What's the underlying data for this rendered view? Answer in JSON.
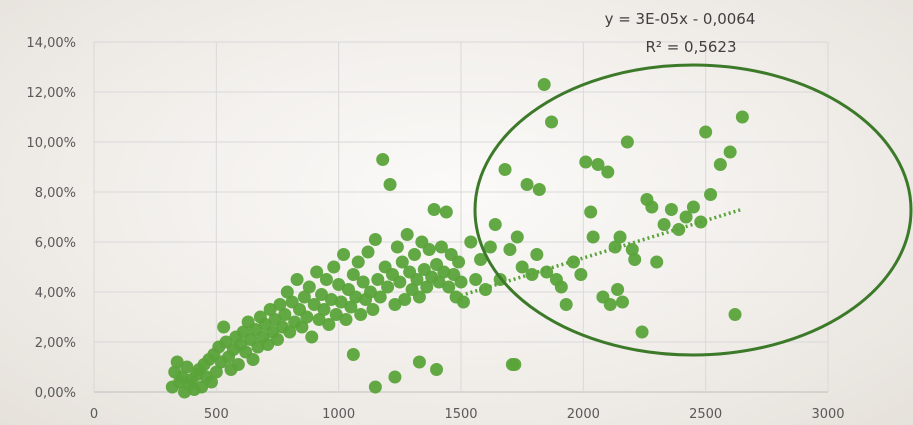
{
  "chart_data": {
    "type": "scatter",
    "title": "",
    "xlabel": "",
    "ylabel": "",
    "xlim": [
      0,
      3000
    ],
    "ylim": [
      0,
      0.14
    ],
    "x_ticks": [
      "0",
      "500",
      "1000",
      "1500",
      "2000",
      "2500",
      "3000"
    ],
    "y_ticks": [
      "0,00%",
      "2,00%",
      "4,00%",
      "6,00%",
      "8,00%",
      "10,00%",
      "12,00%",
      "14,00%"
    ],
    "grid": "both",
    "marker_color": "#5aa33a",
    "trendline": {
      "type": "linear",
      "equation": "y = 3E-05x - 0,0064",
      "r_squared": "R² = 0,5623",
      "color": "#5aa33a",
      "x_range": [
        1500,
        2650
      ]
    },
    "highlight_ellipse_color": "#3c7a2a",
    "series": [
      {
        "points": [
          [
            320,
            0.002
          ],
          [
            330,
            0.008
          ],
          [
            340,
            0.012
          ],
          [
            350,
            0.004
          ],
          [
            360,
            0.006
          ],
          [
            370,
            0.0
          ],
          [
            380,
            0.01
          ],
          [
            390,
            0.003
          ],
          [
            400,
            0.005
          ],
          [
            410,
            0.001
          ],
          [
            420,
            0.007
          ],
          [
            430,
            0.009
          ],
          [
            440,
            0.002
          ],
          [
            450,
            0.011
          ],
          [
            460,
            0.006
          ],
          [
            470,
            0.013
          ],
          [
            480,
            0.004
          ],
          [
            490,
            0.015
          ],
          [
            500,
            0.008
          ],
          [
            510,
            0.018
          ],
          [
            520,
            0.012
          ],
          [
            530,
            0.026
          ],
          [
            540,
            0.02
          ],
          [
            550,
            0.014
          ],
          [
            560,
            0.009
          ],
          [
            570,
            0.017
          ],
          [
            580,
            0.022
          ],
          [
            590,
            0.011
          ],
          [
            600,
            0.019
          ],
          [
            610,
            0.024
          ],
          [
            620,
            0.016
          ],
          [
            630,
            0.028
          ],
          [
            640,
            0.021
          ],
          [
            650,
            0.013
          ],
          [
            660,
            0.025
          ],
          [
            670,
            0.018
          ],
          [
            680,
            0.03
          ],
          [
            690,
            0.022
          ],
          [
            700,
            0.027
          ],
          [
            710,
            0.019
          ],
          [
            720,
            0.033
          ],
          [
            730,
            0.024
          ],
          [
            740,
            0.029
          ],
          [
            750,
            0.021
          ],
          [
            760,
            0.035
          ],
          [
            770,
            0.026
          ],
          [
            780,
            0.031
          ],
          [
            790,
            0.04
          ],
          [
            800,
            0.024
          ],
          [
            810,
            0.036
          ],
          [
            820,
            0.028
          ],
          [
            830,
            0.045
          ],
          [
            840,
            0.033
          ],
          [
            850,
            0.026
          ],
          [
            860,
            0.038
          ],
          [
            870,
            0.03
          ],
          [
            880,
            0.042
          ],
          [
            890,
            0.022
          ],
          [
            900,
            0.035
          ],
          [
            910,
            0.048
          ],
          [
            920,
            0.029
          ],
          [
            930,
            0.039
          ],
          [
            940,
            0.033
          ],
          [
            950,
            0.045
          ],
          [
            960,
            0.027
          ],
          [
            970,
            0.037
          ],
          [
            980,
            0.05
          ],
          [
            990,
            0.031
          ],
          [
            1000,
            0.043
          ],
          [
            1010,
            0.036
          ],
          [
            1020,
            0.055
          ],
          [
            1030,
            0.029
          ],
          [
            1040,
            0.041
          ],
          [
            1050,
            0.034
          ],
          [
            1060,
            0.047
          ],
          [
            1070,
            0.038
          ],
          [
            1080,
            0.052
          ],
          [
            1090,
            0.031
          ],
          [
            1100,
            0.044
          ],
          [
            1110,
            0.037
          ],
          [
            1120,
            0.056
          ],
          [
            1130,
            0.04
          ],
          [
            1140,
            0.033
          ],
          [
            1150,
            0.061
          ],
          [
            1160,
            0.045
          ],
          [
            1170,
            0.038
          ],
          [
            1180,
            0.093
          ],
          [
            1190,
            0.05
          ],
          [
            1200,
            0.042
          ],
          [
            1210,
            0.083
          ],
          [
            1220,
            0.047
          ],
          [
            1230,
            0.035
          ],
          [
            1240,
            0.058
          ],
          [
            1250,
            0.044
          ],
          [
            1260,
            0.052
          ],
          [
            1270,
            0.037
          ],
          [
            1280,
            0.063
          ],
          [
            1290,
            0.048
          ],
          [
            1300,
            0.041
          ],
          [
            1310,
            0.055
          ],
          [
            1320,
            0.045
          ],
          [
            1330,
            0.038
          ],
          [
            1340,
            0.06
          ],
          [
            1350,
            0.049
          ],
          [
            1360,
            0.042
          ],
          [
            1370,
            0.057
          ],
          [
            1380,
            0.046
          ],
          [
            1390,
            0.073
          ],
          [
            1400,
            0.051
          ],
          [
            1410,
            0.044
          ],
          [
            1420,
            0.058
          ],
          [
            1430,
            0.048
          ],
          [
            1440,
            0.072
          ],
          [
            1450,
            0.042
          ],
          [
            1460,
            0.055
          ],
          [
            1470,
            0.047
          ],
          [
            1480,
            0.038
          ],
          [
            1490,
            0.052
          ],
          [
            1500,
            0.044
          ],
          [
            1510,
            0.036
          ],
          [
            1540,
            0.06
          ],
          [
            1560,
            0.045
          ],
          [
            1580,
            0.053
          ],
          [
            1600,
            0.041
          ],
          [
            1620,
            0.058
          ],
          [
            1640,
            0.067
          ],
          [
            1660,
            0.045
          ],
          [
            1680,
            0.089
          ],
          [
            1700,
            0.057
          ],
          [
            1710,
            0.011
          ],
          [
            1720,
            0.011
          ],
          [
            1730,
            0.062
          ],
          [
            1750,
            0.05
          ],
          [
            1770,
            0.083
          ],
          [
            1790,
            0.047
          ],
          [
            1810,
            0.055
          ],
          [
            1820,
            0.081
          ],
          [
            1840,
            0.123
          ],
          [
            1850,
            0.048
          ],
          [
            1870,
            0.108
          ],
          [
            1890,
            0.045
          ],
          [
            1910,
            0.042
          ],
          [
            1930,
            0.035
          ],
          [
            1960,
            0.052
          ],
          [
            1990,
            0.047
          ],
          [
            2010,
            0.092
          ],
          [
            2030,
            0.072
          ],
          [
            2040,
            0.062
          ],
          [
            2060,
            0.091
          ],
          [
            2080,
            0.038
          ],
          [
            2100,
            0.088
          ],
          [
            2110,
            0.035
          ],
          [
            2130,
            0.058
          ],
          [
            2140,
            0.041
          ],
          [
            2150,
            0.062
          ],
          [
            2160,
            0.036
          ],
          [
            2180,
            0.1
          ],
          [
            2200,
            0.057
          ],
          [
            2210,
            0.053
          ],
          [
            2240,
            0.024
          ],
          [
            2260,
            0.077
          ],
          [
            2280,
            0.074
          ],
          [
            2300,
            0.052
          ],
          [
            2330,
            0.067
          ],
          [
            2360,
            0.073
          ],
          [
            2390,
            0.065
          ],
          [
            2420,
            0.07
          ],
          [
            2450,
            0.074
          ],
          [
            2480,
            0.068
          ],
          [
            2500,
            0.104
          ],
          [
            2520,
            0.079
          ],
          [
            2560,
            0.091
          ],
          [
            2600,
            0.096
          ],
          [
            2620,
            0.031
          ],
          [
            2650,
            0.11
          ],
          [
            1060,
            0.015
          ],
          [
            1150,
            0.002
          ],
          [
            1230,
            0.006
          ],
          [
            1330,
            0.012
          ],
          [
            1400,
            0.009
          ]
        ]
      }
    ]
  }
}
